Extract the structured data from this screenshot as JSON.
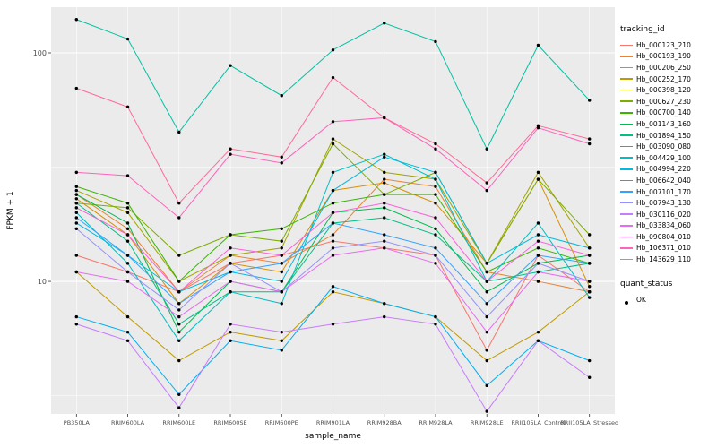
{
  "style": {
    "panel_bg": "#EBEBEB",
    "grid_color": "#FFFFFF",
    "point_color": "#000000",
    "tick_text_color": "#4D4D4D",
    "axis_title_color": "#000000"
  },
  "chart_data": {
    "type": "line",
    "title": "",
    "xlabel": "sample_name",
    "ylabel": "FPKM + 1",
    "y_scale": "log10",
    "y_ticks": [
      100,
      10
    ],
    "y_minor_ticks": [
      31.62,
      3.162
    ],
    "ylim_log10": [
      0.42,
      2.2
    ],
    "grid": true,
    "legend_position": "right",
    "categories": [
      "PB350LA",
      "RRIM600LA",
      "RRIM600LE",
      "RRIM600SE",
      "RRIM600PE",
      "RRIM901LA",
      "RRIM928BA",
      "RRIM928LA",
      "RRIM928LE",
      "RRII105LA_Control",
      "RRII105LA_Stressed"
    ],
    "legend": {
      "color_title": "tracking_id",
      "shape_title": "quant_status",
      "shape_label": "OK"
    },
    "series": [
      {
        "name": "Hb_000123_210",
        "color": "#F8766D",
        "values": [
          13,
          11,
          9,
          12,
          13,
          15,
          14,
          13,
          5,
          13,
          9
        ]
      },
      {
        "name": "Hb_000193_190",
        "color": "#EA8331",
        "values": [
          24,
          17,
          9,
          13,
          12,
          16,
          28,
          26,
          11,
          10,
          9
        ]
      },
      {
        "name": "Hb_000206_250",
        "color": "#D89000",
        "values": [
          23,
          16,
          8,
          12,
          11,
          25,
          27,
          22,
          12,
          28,
          9.5
        ]
      },
      {
        "name": "Hb_000252_170",
        "color": "#C09B00",
        "values": [
          11,
          7,
          4.5,
          6,
          5.5,
          9,
          8,
          7,
          4.5,
          6,
          9
        ]
      },
      {
        "name": "Hb_000398_120",
        "color": "#A3A500",
        "values": [
          25,
          20,
          10,
          13,
          14,
          42,
          30,
          28,
          12,
          30,
          14
        ]
      },
      {
        "name": "Hb_000627_230",
        "color": "#7CAE00",
        "values": [
          22,
          21,
          13,
          16,
          15,
          40,
          24,
          30,
          12,
          28,
          16
        ]
      },
      {
        "name": "Hb_000700_140",
        "color": "#39B600",
        "values": [
          26,
          22,
          10,
          16,
          17,
          22,
          24,
          24,
          11,
          14,
          12
        ]
      },
      {
        "name": "Hb_001143_160",
        "color": "#00BB4E",
        "values": [
          24,
          18,
          6,
          10,
          9,
          20,
          21,
          17,
          9,
          12,
          13
        ]
      },
      {
        "name": "Hb_001894_150",
        "color": "#00C087",
        "values": [
          22,
          15,
          6.5,
          9,
          9,
          18,
          19,
          16,
          10,
          11,
          12
        ]
      },
      {
        "name": "Hb_003090_080",
        "color": "#00C1A3",
        "values": [
          140,
          115,
          45,
          88,
          65,
          103,
          135,
          112,
          38,
          108,
          62
        ]
      },
      {
        "name": "Hb_004429_100",
        "color": "#00BFC4",
        "values": [
          20,
          12,
          5.5,
          9,
          8,
          30,
          36,
          28,
          10,
          18,
          8.5
        ]
      },
      {
        "name": "Hb_004994_220",
        "color": "#00BAE0",
        "values": [
          18,
          13,
          9,
          11,
          10,
          25,
          35,
          30,
          12,
          16,
          14
        ]
      },
      {
        "name": "Hb_006642_040",
        "color": "#00B0F6",
        "values": [
          7,
          6,
          3.2,
          5.5,
          5,
          9.5,
          8,
          7,
          3.5,
          5.5,
          4.5
        ]
      },
      {
        "name": "Hb_007101_170",
        "color": "#35A2FF",
        "values": [
          19,
          13,
          8,
          11,
          12,
          18,
          16,
          14,
          8,
          13,
          12
        ]
      },
      {
        "name": "Hb_007943_130",
        "color": "#9590FF",
        "values": [
          17,
          11,
          7.5,
          12,
          9,
          14,
          15,
          13,
          7,
          12,
          10
        ]
      },
      {
        "name": "Hb_030116_020",
        "color": "#C77CFF",
        "values": [
          6.5,
          5.5,
          2.8,
          6.5,
          6,
          6.5,
          7,
          6.5,
          2.7,
          5.5,
          3.8
        ]
      },
      {
        "name": "Hb_033834_060",
        "color": "#E76BF3",
        "values": [
          11,
          10,
          7,
          10,
          9,
          13,
          14,
          12,
          6,
          11,
          10
        ]
      },
      {
        "name": "Hb_090804_010",
        "color": "#FA62DB",
        "values": [
          21,
          16,
          9,
          14,
          13,
          20,
          22,
          19,
          10,
          15,
          13
        ]
      },
      {
        "name": "Hb_106371_010",
        "color": "#FF62BC",
        "values": [
          30,
          29,
          19,
          36,
          33,
          50,
          52,
          38,
          25,
          47,
          40
        ]
      },
      {
        "name": "Hb_143629_110",
        "color": "#FF6A98",
        "values": [
          70,
          58,
          22,
          38,
          35,
          78,
          52,
          40,
          27,
          48,
          42
        ]
      }
    ]
  }
}
